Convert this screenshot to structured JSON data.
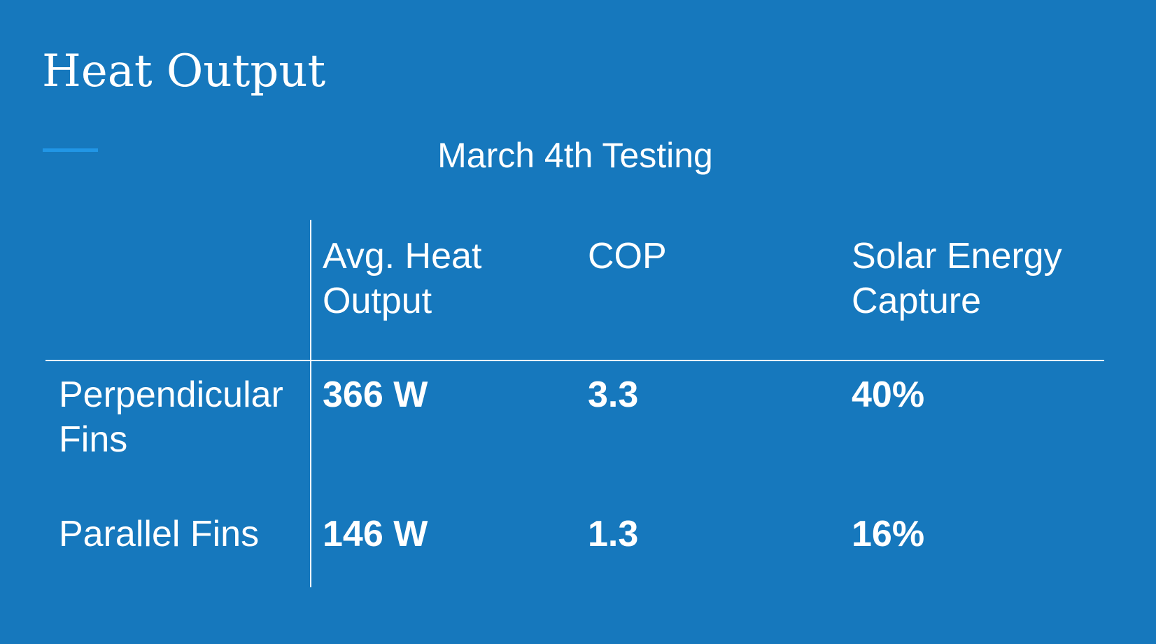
{
  "title": "Heat Output",
  "subtitle": "March 4th Testing",
  "table": {
    "header": [
      "Avg. Heat Output",
      "COP",
      "Solar Energy Capture"
    ],
    "rows": [
      [
        "Perpendicular Fins",
        "366 W",
        "3.3",
        "40%"
      ],
      [
        "Parallel Fins",
        "146 W",
        "1.3",
        "16%"
      ]
    ]
  }
}
